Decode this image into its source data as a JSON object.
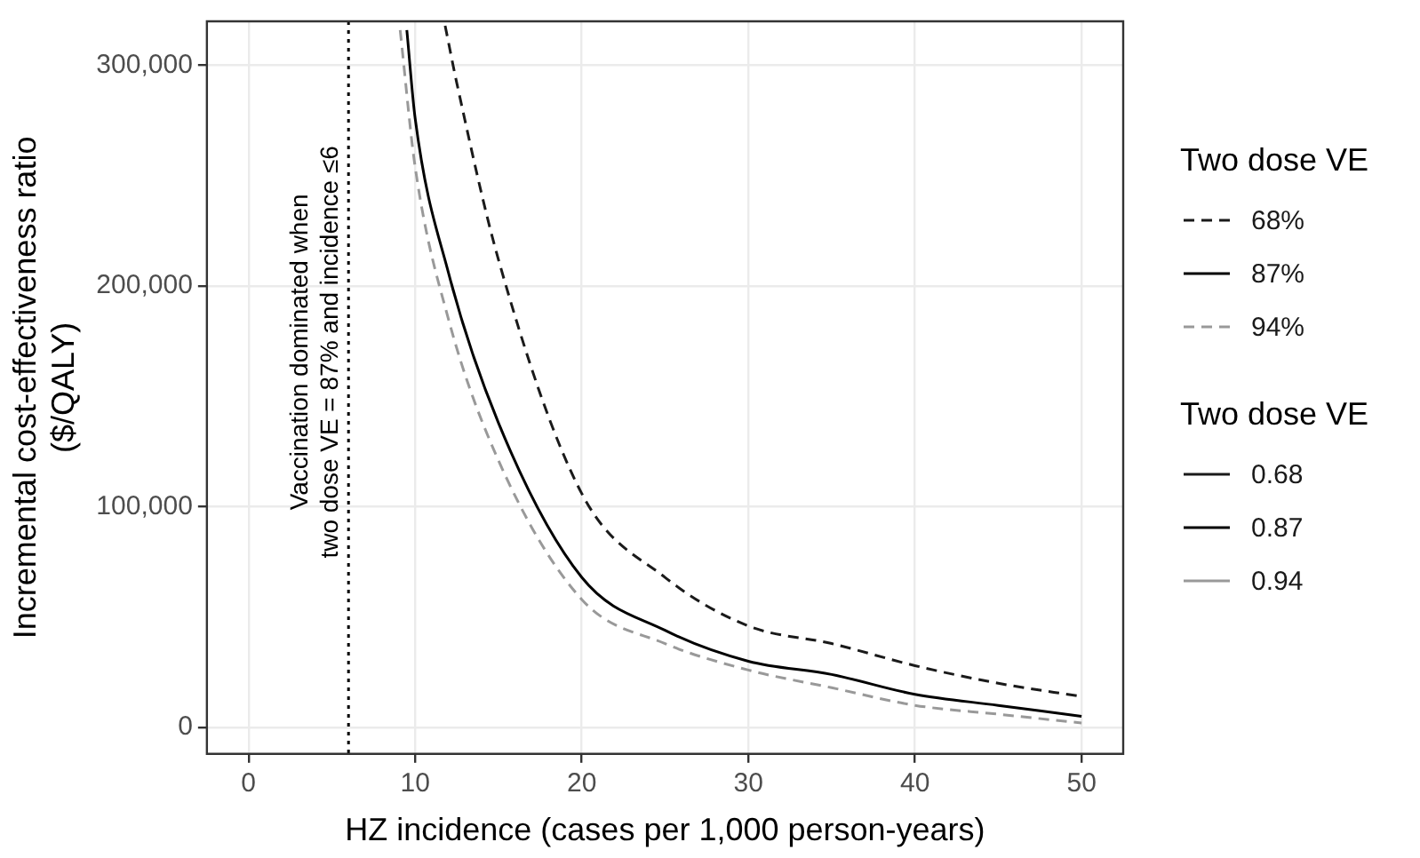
{
  "chart_data": {
    "type": "line",
    "xlabel": "HZ incidence (cases per 1,000 person-years)",
    "ylabel": "Incremental cost-effectiveness ratio\n($/QALY)",
    "legend_title": "Two dose VE",
    "legend": "right",
    "grid": true,
    "marker": "none",
    "xlim": [
      -2.5,
      52.5
    ],
    "xticks": [
      0,
      10,
      20,
      30,
      40,
      50
    ],
    "ylim": [
      -12000,
      320000
    ],
    "yticks": [
      {
        "value": 0,
        "label": "0"
      },
      {
        "value": 100000,
        "label": "100,000"
      },
      {
        "value": 200000,
        "label": "200,000"
      },
      {
        "value": 300000,
        "label": "300,000"
      }
    ],
    "series": [
      {
        "name": "68%",
        "color": "#1a1a1a",
        "line_style": "dashed",
        "x": [
          11.8,
          12.5,
          15,
          20,
          25,
          30,
          35,
          40,
          45,
          50
        ],
        "values": [
          318000,
          292000,
          212000,
          106000,
          68000,
          46000,
          38000,
          28000,
          20000,
          14000
        ]
      },
      {
        "name": "87%",
        "color": "#000000",
        "line_style": "solid",
        "x": [
          9.5,
          10,
          12,
          15,
          20,
          25,
          30,
          35,
          40,
          45,
          50
        ],
        "values": [
          316000,
          276000,
          206000,
          138000,
          68000,
          44000,
          30000,
          24000,
          15000,
          10000,
          5000
        ]
      },
      {
        "name": "94%",
        "color": "#999999",
        "line_style": "dashed",
        "x": [
          9.1,
          10,
          12,
          15,
          20,
          25,
          30,
          35,
          40,
          45,
          50
        ],
        "values": [
          316000,
          254000,
          185000,
          121000,
          58000,
          38000,
          26000,
          18000,
          10000,
          6000,
          2000
        ]
      }
    ],
    "ref_lines": [
      {
        "axis": "x",
        "value": 6,
        "label": "Vaccination dominated when\ntwo dose VE = 87% and incidence ≤6",
        "line_style": "dotted",
        "color": "#000000"
      }
    ],
    "annotations": [
      "Two dose VE",
      "0.68",
      "0.87",
      "0.94"
    ]
  }
}
